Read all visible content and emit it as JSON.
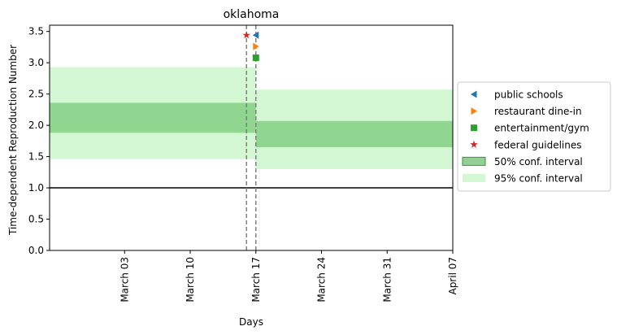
{
  "chart_data": {
    "type": "area",
    "title": "oklahoma",
    "xlabel": "Days",
    "ylabel": "Time-dependent Reproduction Number",
    "x_range": [
      "2020-02-24",
      "2020-04-07"
    ],
    "ylim": [
      0,
      3.6
    ],
    "x_ticks": [
      {
        "date": "2020-03-03",
        "label": "March 03"
      },
      {
        "date": "2020-03-10",
        "label": "March 10"
      },
      {
        "date": "2020-03-17",
        "label": "March 17"
      },
      {
        "date": "2020-03-24",
        "label": "March 24"
      },
      {
        "date": "2020-03-31",
        "label": "March 31"
      },
      {
        "date": "2020-04-07",
        "label": "April 07"
      }
    ],
    "y_ticks": [
      0.0,
      0.5,
      1.0,
      1.5,
      2.0,
      2.5,
      3.0,
      3.5
    ],
    "y_tick_labels": [
      "0.0",
      "0.5",
      "1.0",
      "1.5",
      "2.0",
      "2.5",
      "3.0",
      "3.5"
    ],
    "grid": false,
    "reference_line": {
      "y": 1.0,
      "color": "#000000"
    },
    "intervals": [
      {
        "x_start": "2020-02-24",
        "x_end": "2020-03-17",
        "ci50": [
          1.88,
          2.36
        ],
        "ci95": [
          1.46,
          2.93
        ]
      },
      {
        "x_start": "2020-03-17",
        "x_end": "2020-04-07",
        "ci50": [
          1.65,
          2.07
        ],
        "ci95": [
          1.3,
          2.57
        ]
      }
    ],
    "interventions": [
      {
        "name": "public schools",
        "date": "2020-03-17",
        "y": 3.44,
        "marker": "triangle-left",
        "color": "#1f77b4"
      },
      {
        "name": "restaurant dine-in",
        "date": "2020-03-17",
        "y": 3.26,
        "marker": "triangle-right",
        "color": "#ff7f0e"
      },
      {
        "name": "entertainment/gym",
        "date": "2020-03-17",
        "y": 3.08,
        "marker": "square",
        "color": "#2ca02c"
      },
      {
        "name": "federal guidelines",
        "date": "2020-03-16",
        "y": 3.44,
        "marker": "star",
        "color": "#d62728"
      }
    ],
    "vlines": [
      {
        "date": "2020-03-16",
        "color": "#808080",
        "style": "dashed"
      },
      {
        "date": "2020-03-17",
        "color": "#808080",
        "style": "dashed"
      }
    ],
    "legend": {
      "placement": "right",
      "entries": [
        {
          "label": "public schools",
          "kind": "marker",
          "marker": "triangle-left",
          "color": "#1f77b4"
        },
        {
          "label": "restaurant dine-in",
          "kind": "marker",
          "marker": "triangle-right",
          "color": "#ff7f0e"
        },
        {
          "label": "entertainment/gym",
          "kind": "marker",
          "marker": "square",
          "color": "#2ca02c"
        },
        {
          "label": "federal guidelines",
          "kind": "marker",
          "marker": "star",
          "color": "#d62728"
        },
        {
          "label": "50% conf. interval",
          "kind": "patch",
          "color": "#2ca02c"
        },
        {
          "label": "95% conf. interval",
          "kind": "patch",
          "color": "#90ee90"
        }
      ]
    },
    "colors": {
      "ci50": "#2ca02c",
      "ci95": "#90ee90"
    }
  }
}
